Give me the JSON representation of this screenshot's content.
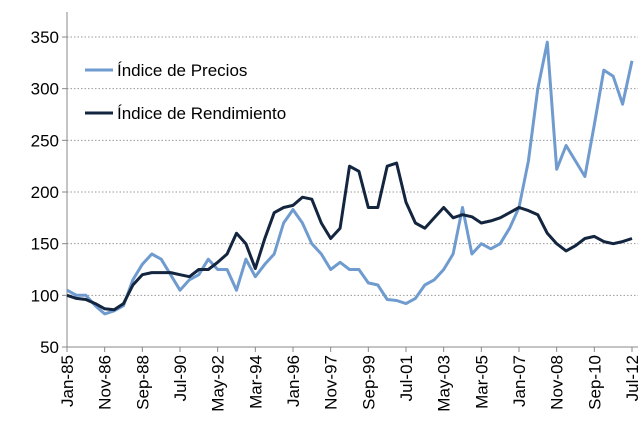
{
  "chart_data": {
    "type": "line",
    "categories": [
      "Jan-85",
      null,
      null,
      null,
      "Nov-86",
      null,
      null,
      null,
      "Sep-88",
      null,
      null,
      null,
      "Jul-90",
      null,
      null,
      null,
      "May-92",
      null,
      null,
      null,
      "Mar-94",
      null,
      null,
      null,
      "Jan-96",
      null,
      null,
      null,
      "Nov-97",
      null,
      null,
      null,
      "Sep-99",
      null,
      null,
      null,
      "Jul-01",
      null,
      null,
      null,
      "May-03",
      null,
      null,
      null,
      "Mar-05",
      null,
      null,
      null,
      "Jan-07",
      null,
      null,
      null,
      "Nov-08",
      null,
      null,
      null,
      "Sep-10",
      null,
      null,
      null,
      "Jul-12"
    ],
    "series": [
      {
        "name": "Índice de Precios",
        "color": "#6f9bcf",
        "values": [
          105,
          100,
          100,
          90,
          82,
          85,
          90,
          115,
          130,
          140,
          135,
          120,
          105,
          115,
          120,
          135,
          125,
          125,
          105,
          135,
          118,
          130,
          140,
          170,
          183,
          170,
          150,
          140,
          125,
          132,
          125,
          125,
          112,
          110,
          96,
          95,
          92,
          97,
          110,
          115,
          125,
          140,
          185,
          140,
          150,
          145,
          150,
          165,
          185,
          230,
          300,
          345,
          222,
          245,
          230,
          215,
          265,
          318,
          312,
          285,
          327
        ]
      },
      {
        "name": "Índice de Rendimiento",
        "color": "#13253f",
        "values": [
          100,
          97,
          96,
          92,
          87,
          86,
          92,
          110,
          120,
          122,
          122,
          122,
          120,
          118,
          125,
          125,
          132,
          140,
          160,
          150,
          126,
          155,
          180,
          185,
          187,
          195,
          193,
          170,
          155,
          165,
          225,
          220,
          185,
          185,
          225,
          228,
          190,
          170,
          165,
          175,
          185,
          175,
          178,
          176,
          170,
          172,
          175,
          180,
          185,
          182,
          178,
          160,
          150,
          143,
          148,
          155,
          157,
          152,
          150,
          152,
          155
        ]
      }
    ],
    "ylim": [
      50,
      350
    ],
    "yticks": [
      50,
      100,
      150,
      200,
      250,
      300,
      350
    ],
    "grid": true,
    "legend": "top-left"
  }
}
